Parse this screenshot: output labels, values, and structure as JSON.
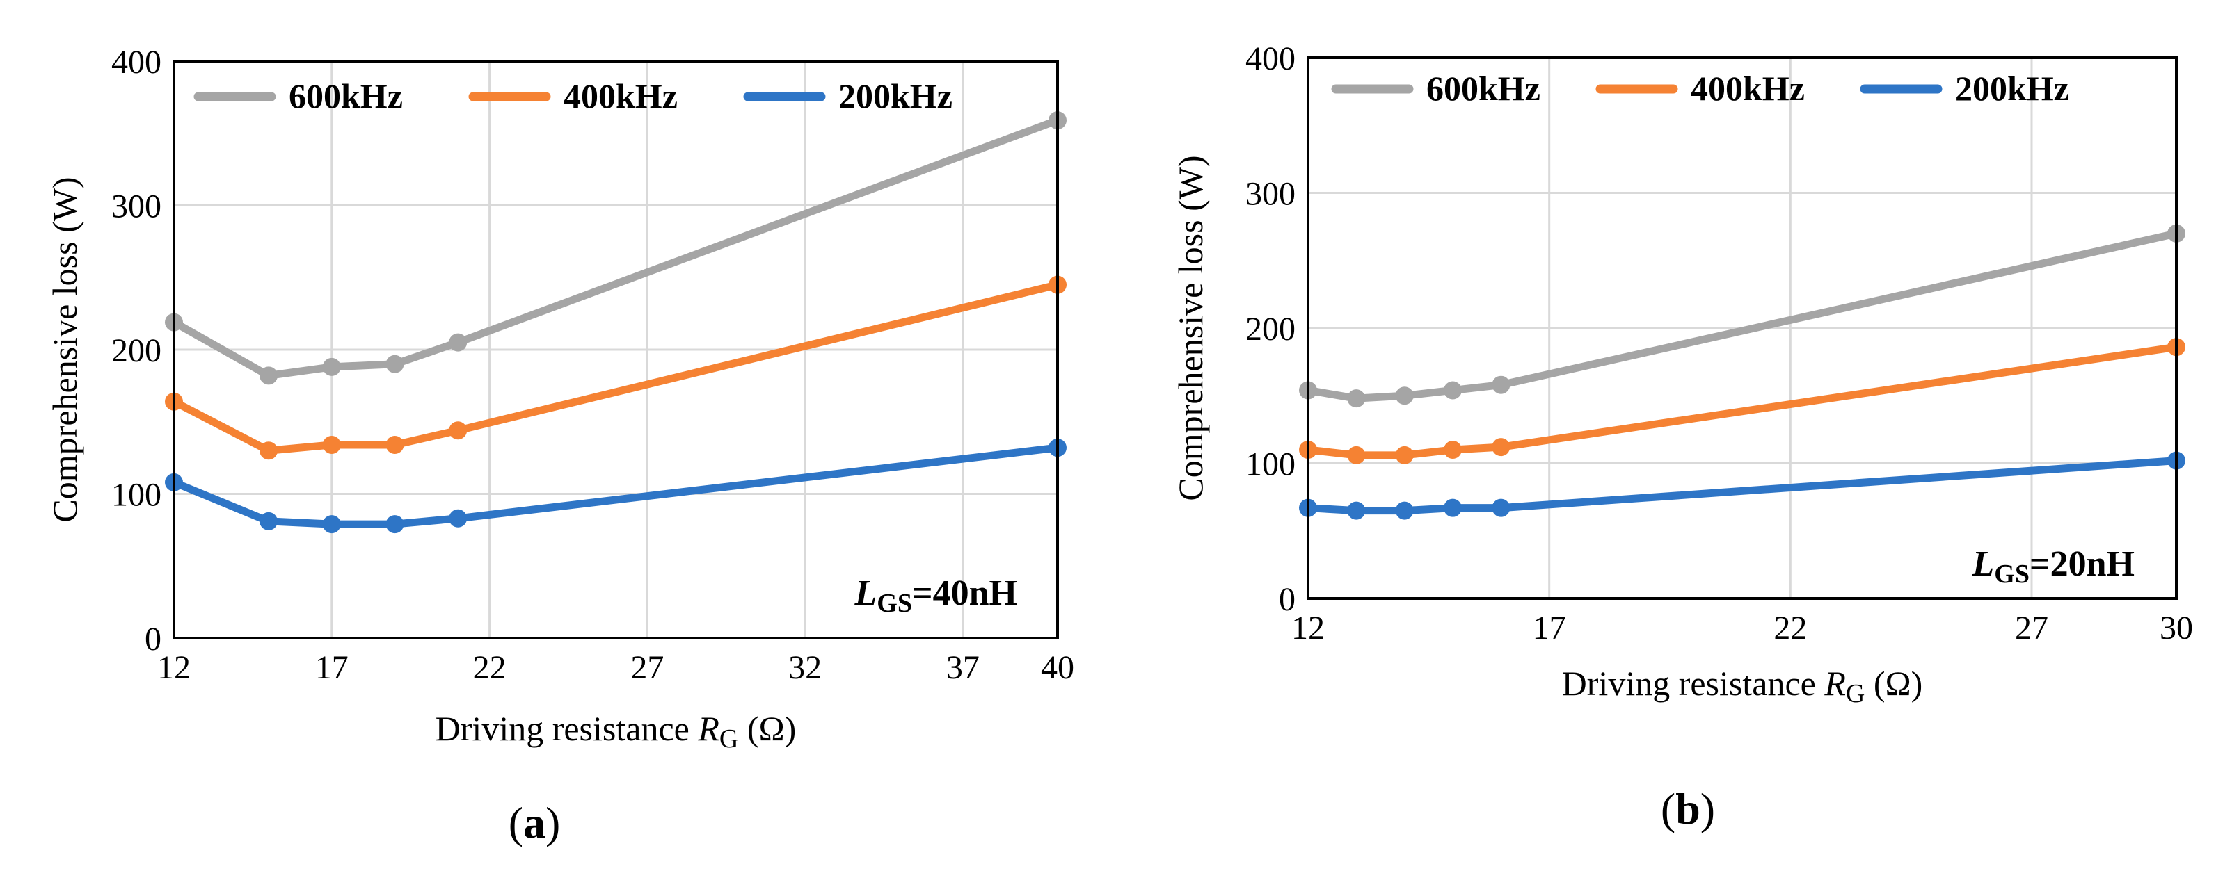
{
  "chart_data": [
    {
      "type": "line",
      "panel_label": "a",
      "xlabel": "Driving resistance R_G (Ω)",
      "xlabel_prefix": "Driving resistance ",
      "xlabel_var": "R",
      "xlabel_sub": "G",
      "xlabel_unit": " (Ω)",
      "ylabel": "Comprehensive loss (W)",
      "xlim": [
        12,
        40
      ],
      "ylim": [
        0,
        400
      ],
      "xticks": [
        12,
        17,
        22,
        27,
        32,
        37,
        40
      ],
      "yticks": [
        0,
        100,
        200,
        300,
        400
      ],
      "grid": true,
      "legend_position": "top",
      "annotation": {
        "var": "L",
        "sub": "GS",
        "rest": "=40nH"
      },
      "series": [
        {
          "name": "600kHz",
          "color": "#a5a5a5",
          "x": [
            12,
            15,
            17,
            19,
            21,
            40
          ],
          "y": [
            219,
            182,
            188,
            190,
            205,
            359
          ]
        },
        {
          "name": "400kHz",
          "color": "#f58233",
          "x": [
            12,
            15,
            17,
            19,
            21,
            40
          ],
          "y": [
            164,
            130,
            134,
            134,
            144,
            245
          ]
        },
        {
          "name": "200kHz",
          "color": "#2e75c6",
          "x": [
            12,
            15,
            17,
            19,
            21,
            40
          ],
          "y": [
            108,
            81,
            79,
            79,
            83,
            132
          ]
        }
      ]
    },
    {
      "type": "line",
      "panel_label": "b",
      "xlabel": "Driving resistance R_G (Ω)",
      "xlabel_prefix": "Driving resistance ",
      "xlabel_var": "R",
      "xlabel_sub": "G",
      "xlabel_unit": " (Ω)",
      "ylabel": "Comprehensive loss (W)",
      "xlim": [
        12,
        30
      ],
      "ylim": [
        0,
        400
      ],
      "xticks": [
        12,
        17,
        22,
        27,
        30
      ],
      "yticks": [
        0,
        100,
        200,
        300,
        400
      ],
      "grid": true,
      "legend_position": "top",
      "annotation": {
        "var": "L",
        "sub": "GS",
        "rest": "=20nH"
      },
      "series": [
        {
          "name": "600kHz",
          "color": "#a5a5a5",
          "x": [
            12,
            13,
            14,
            15,
            16,
            30
          ],
          "y": [
            154,
            148,
            150,
            154,
            158,
            270
          ]
        },
        {
          "name": "400kHz",
          "color": "#f58233",
          "x": [
            12,
            13,
            14,
            15,
            16,
            30
          ],
          "y": [
            110,
            106,
            106,
            110,
            112,
            186
          ]
        },
        {
          "name": "200kHz",
          "color": "#2e75c6",
          "x": [
            12,
            13,
            14,
            15,
            16,
            30
          ],
          "y": [
            67,
            65,
            65,
            67,
            67,
            102
          ]
        }
      ]
    }
  ]
}
